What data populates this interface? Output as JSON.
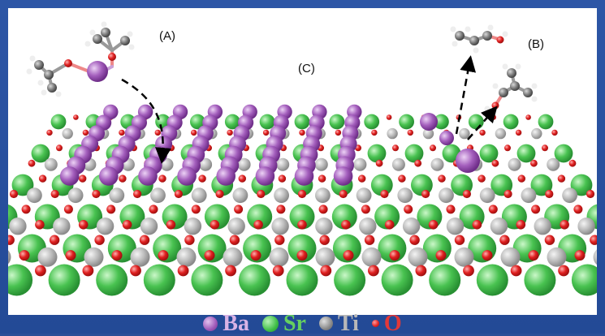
{
  "panel_labels": {
    "a": "(A)",
    "b": "(B)",
    "c": "(C)"
  },
  "legend": [
    {
      "symbol": "Ba",
      "color": "#a45fbd",
      "text_color": "#d9b3e6"
    },
    {
      "symbol": "Sr",
      "color": "#3fbf47",
      "text_color": "#66d15f"
    },
    {
      "symbol": "Ti",
      "color": "#8a8a8a",
      "text_color": "#b8b8b8"
    },
    {
      "symbol": "O",
      "color": "#e02020",
      "text_color": "#e23838"
    }
  ],
  "colors": {
    "frame": "#2a4f98",
    "panel": "#ffffff",
    "barium": "#a45fbd",
    "strontium": "#3fbf47",
    "titanium": "#9a9a9a",
    "oxygen": "#e02020",
    "carbon": "#7a7a7a",
    "hydrogen": "#e8e8e8"
  }
}
